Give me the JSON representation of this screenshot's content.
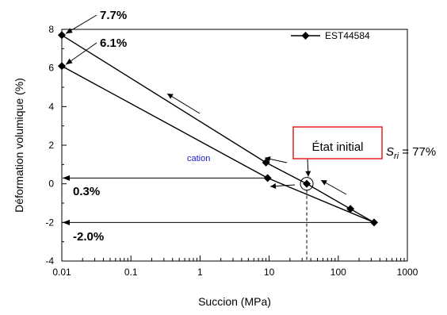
{
  "chart_data": {
    "type": "line",
    "x_scale": "log",
    "xlim": [
      0.01,
      1000
    ],
    "ylim": [
      -4,
      8
    ],
    "xlabel": "Succion (MPa)",
    "ylabel": "Déformation volumique (%)",
    "x_ticks": [
      {
        "value": 0.01,
        "label": "0.01"
      },
      {
        "value": 0.1,
        "label": "0.1"
      },
      {
        "value": 1,
        "label": "1"
      },
      {
        "value": 10,
        "label": "10"
      },
      {
        "value": 100,
        "label": "100"
      },
      {
        "value": 1000,
        "label": "1000"
      }
    ],
    "y_ticks": [
      {
        "value": -4,
        "label": "-4"
      },
      {
        "value": -2,
        "label": "-2"
      },
      {
        "value": 0,
        "label": "0"
      },
      {
        "value": 2,
        "label": "2"
      },
      {
        "value": 4,
        "label": "4"
      },
      {
        "value": 6,
        "label": "6"
      },
      {
        "value": 8,
        "label": "8"
      }
    ],
    "series": [
      {
        "name": "EST44584",
        "color": "#000000",
        "marker": "diamond",
        "points": [
          {
            "x": 35,
            "y": 0
          },
          {
            "x": 150,
            "y": -1.3
          },
          {
            "x": 330,
            "y": -2.0
          },
          {
            "x": 9.5,
            "y": 0.3
          },
          {
            "x": 0.01,
            "y": 6.1
          },
          {
            "x": 9.0,
            "y": 1.1
          },
          {
            "x": 0.01,
            "y": 7.7
          }
        ],
        "segments": [
          [
            0,
            1
          ],
          [
            1,
            2
          ],
          [
            2,
            3
          ],
          [
            3,
            4
          ],
          [
            0,
            5
          ],
          [
            5,
            6
          ]
        ]
      }
    ],
    "legend_position": "top-right",
    "grid": false,
    "annotations": {
      "label_77": "7.7%",
      "label_61": "6.1%",
      "label_03": "0.3%",
      "label_m20": "-2.0%",
      "initial_state": "État initial",
      "sri_s": "S",
      "sri_sub": "ri",
      "sri_value": " = 77%",
      "cation": "cation"
    }
  }
}
